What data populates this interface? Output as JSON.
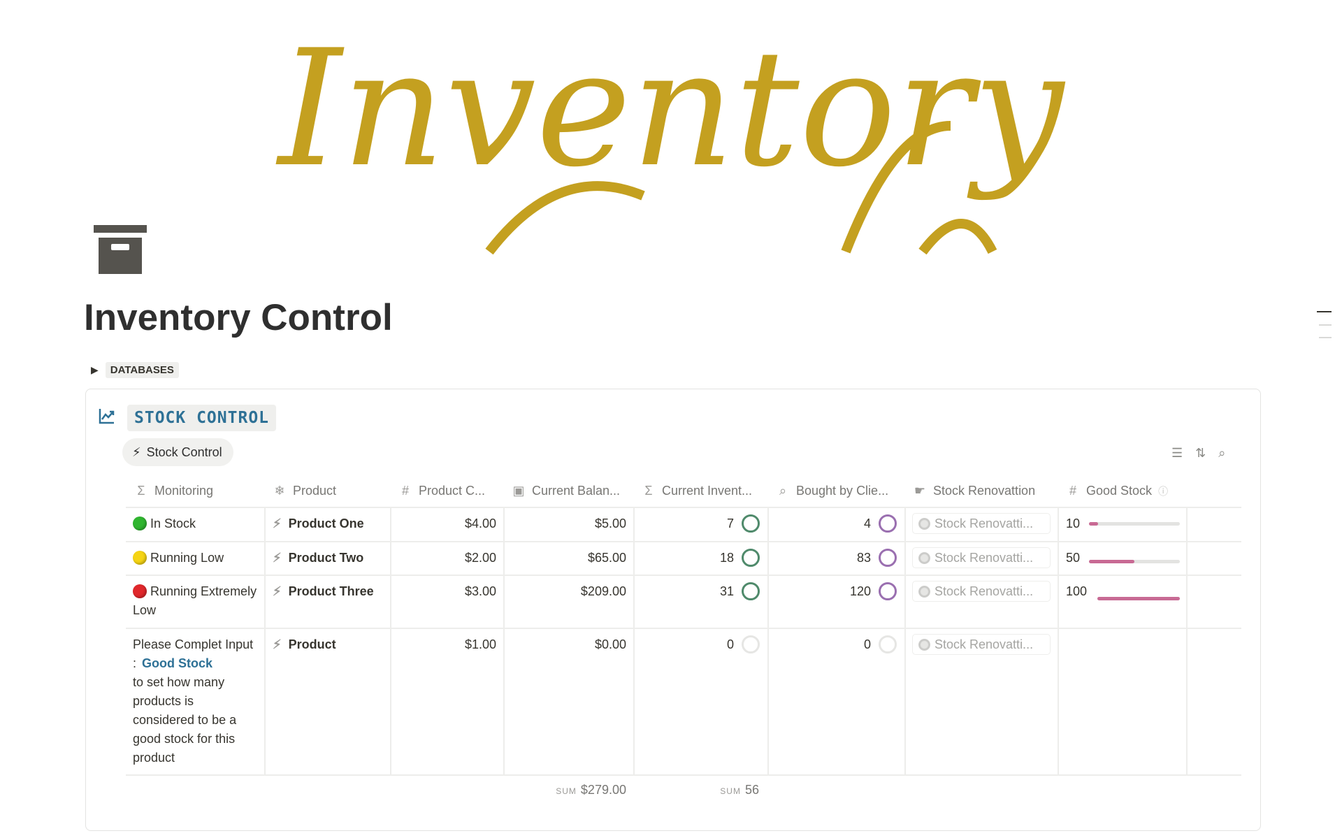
{
  "banner": {
    "logo_text": "Inventory",
    "color": "#c4a020"
  },
  "page": {
    "title": "Inventory Control",
    "toggle_label": "DATABASES"
  },
  "database": {
    "title": "STOCK CONTROL",
    "view_tab": "Stock Control",
    "tools": [
      "filter-icon",
      "sort-icon",
      "search-icon"
    ],
    "columns": [
      {
        "label": "Monitoring",
        "icon": "Σ"
      },
      {
        "label": "Product",
        "icon": "❄"
      },
      {
        "label": "Product C...",
        "icon": "#"
      },
      {
        "label": "Current Balan...",
        "icon": "▣"
      },
      {
        "label": "Current Invent...",
        "icon": "Σ"
      },
      {
        "label": "Bought by Clie...",
        "icon": "⌕"
      },
      {
        "label": "Stock Renovattion",
        "icon": "☛"
      },
      {
        "label": "Good Stock",
        "icon": "#"
      }
    ],
    "rows": [
      {
        "status_dot": "#2fb52f",
        "monitoring": "In Stock",
        "product": "Product One",
        "cost": "$4.00",
        "balance": "$5.00",
        "inventory": "7",
        "bought": "4",
        "renovation": "Stock Renovatti...",
        "good_stock": "10",
        "good_stock_fraction": 0.1
      },
      {
        "status_dot": "#f5d414",
        "monitoring": "Running Low",
        "product": "Product Two",
        "cost": "$2.00",
        "balance": "$65.00",
        "inventory": "18",
        "bought": "83",
        "renovation": "Stock Renovatti...",
        "good_stock": "50",
        "good_stock_fraction": 0.5
      },
      {
        "status_dot": "#e0272b",
        "monitoring": "Running Extremely Low",
        "product": "Product Three",
        "cost": "$3.00",
        "balance": "$209.00",
        "inventory": "31",
        "bought": "120",
        "renovation": "Stock Renovatti...",
        "good_stock": "100",
        "good_stock_fraction": 1.0
      },
      {
        "status_dot": "",
        "monitoring": "Please Complet Input :",
        "monitoring_link": "Good Stock",
        "monitoring_tail": "to set how many products is considered to be a good stock for this product",
        "product": "Product",
        "cost": "$1.00",
        "balance": "$0.00",
        "inventory": "0",
        "bought": "0",
        "renovation": "Stock Renovatti...",
        "good_stock": "",
        "good_stock_fraction": null
      }
    ],
    "footer": {
      "sum_label": "SUM",
      "balance_sum": "$279.00",
      "inventory_sum": "56"
    }
  },
  "colors": {
    "accent": "#2e7196",
    "inventory_ring": "#4f8a6b",
    "bought_ring": "#9a6fb0",
    "good_stock_bar": "#c86a94"
  }
}
